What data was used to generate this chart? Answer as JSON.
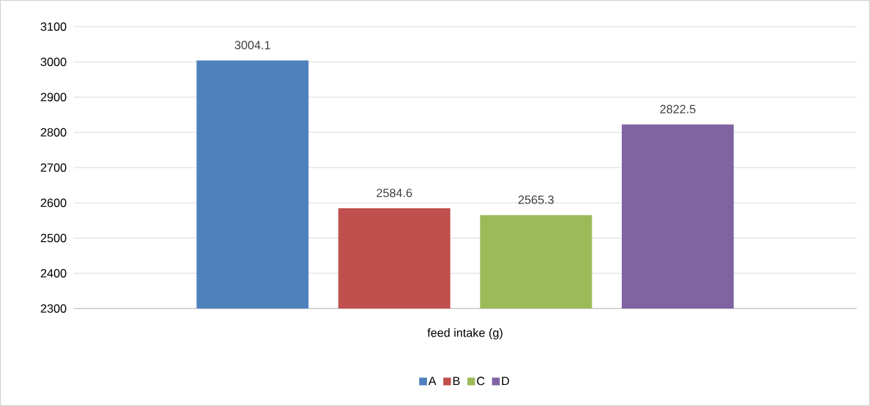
{
  "chart_data": {
    "type": "bar",
    "categories": [
      "feed intake (g)"
    ],
    "series": [
      {
        "name": "A",
        "color": "#4f81bd",
        "values": [
          3004.1
        ]
      },
      {
        "name": "B",
        "color": "#c0504d",
        "values": [
          2584.6
        ]
      },
      {
        "name": "C",
        "color": "#9bbb59",
        "values": [
          2565.3
        ]
      },
      {
        "name": "D",
        "color": "#8064a2",
        "values": [
          2822.5
        ]
      }
    ],
    "ylim": [
      2300,
      3100
    ],
    "yticks": [
      2300,
      2400,
      2500,
      2600,
      2700,
      2800,
      2900,
      3000,
      3100
    ],
    "grid": "y",
    "legend": "bottom",
    "data_labels": true
  }
}
